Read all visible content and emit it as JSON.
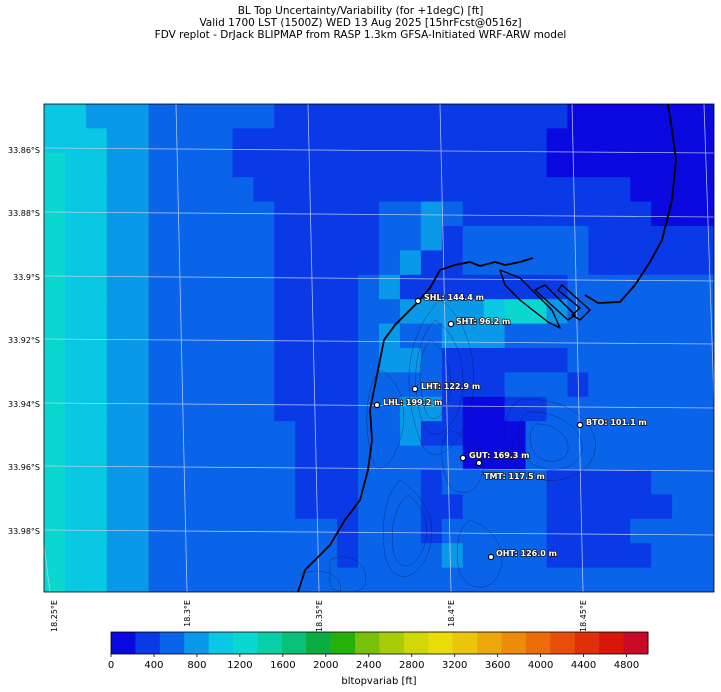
{
  "title": {
    "line1": "BL Top Uncertainty/Variability (for +1degC) [ft]",
    "line2": "Valid 1700 LST (1500Z) WED 13 Aug 2025 [15hrFcst@0516z]",
    "line3": "FDV replot - DrJack BLIPMAP from RASP 1.3km GFSA-Initiated WRF-ARW model"
  },
  "lat_labels": [
    "33.86°S",
    "33.88°S",
    "33.9°S",
    "33.92°S",
    "33.94°S",
    "33.96°S",
    "33.98°S"
  ],
  "lon_labels": [
    "18.25°E",
    "18.3°E",
    "18.35°E",
    "18.4°E",
    "18.45°E"
  ],
  "sites": [
    {
      "label": "SHL: 144.4 m"
    },
    {
      "label": "SHT: 96.2 m"
    },
    {
      "label": "LHT: 122.9 m"
    },
    {
      "label": "LHL: 199.2 m"
    },
    {
      "label": "BTO: 101.1 m"
    },
    {
      "label": "GUT: 169.3 m"
    },
    {
      "label": "TMT: 117.5 m"
    },
    {
      "label": "OHT: 126.0 m"
    }
  ],
  "colorbar": {
    "label": "bltopvariab [ft]",
    "ticks": [
      "0",
      "400",
      "800",
      "1200",
      "1600",
      "2000",
      "2400",
      "2800",
      "3200",
      "3600",
      "4000",
      "4400",
      "4800"
    ],
    "colors": [
      "#0a0ae0",
      "#0a3ae6",
      "#0a64ea",
      "#0a98e8",
      "#0ac8e4",
      "#0ad8d0",
      "#0ad0a8",
      "#0ac078",
      "#0aae40",
      "#28b00a",
      "#78c00a",
      "#a8cc0a",
      "#d0d80a",
      "#e8dc0a",
      "#ecc40a",
      "#eca80a",
      "#ec8c0a",
      "#ec6c0a",
      "#e84e0a",
      "#e0300a",
      "#d8160a",
      "#c80a28"
    ]
  },
  "grid_colors": {
    "c0": "#0a0ae0",
    "c1": "#0a3ae6",
    "c2": "#0a64ea",
    "c3": "#0a98e8",
    "c4": "#0ac8e4",
    "c5": "#0ad8d0"
  },
  "grid_levels": [
    "44333222222111111111111110000000",
    "44433222211111111111111100000000",
    "54433222211111111111111100000000",
    "54433222221111111111111111110000",
    "54433222222111112232111111111000",
    "54433222222111112231222222111111",
    "54433222222111112311222222111111",
    "54433222222111123111111112222222",
    "54433222222111122333345532222222",
    "54433222222111123223332222222222",
    "54433222222111123321111112222222",
    "54433222222111122221112221222222",
    "54433222222111122331001122222222",
    "54433222222211122311000222222222",
    "54433222222211122222000222222222",
    "54433222222211122212222211111222",
    "54433222222211122211222211111122",
    "54433222222222122212222211112222",
    "54433222222222122223222211111222",
    "54433222222222222222222222222222"
  ]
}
